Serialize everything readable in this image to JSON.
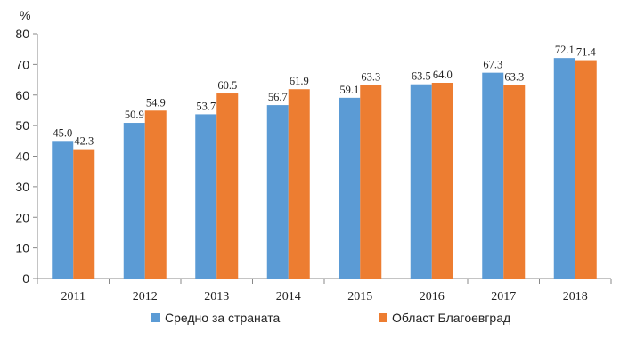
{
  "chart_data": {
    "type": "bar",
    "unit_label": "%",
    "categories": [
      "2011",
      "2012",
      "2013",
      "2014",
      "2015",
      "2016",
      "2017",
      "2018"
    ],
    "series": [
      {
        "name": "Средно за страната",
        "color": "#5b9bd5",
        "values": [
          45.0,
          50.9,
          53.7,
          56.7,
          59.1,
          63.5,
          67.3,
          72.1
        ]
      },
      {
        "name": "Област Благоевград",
        "color": "#ed7d31",
        "values": [
          42.3,
          54.9,
          60.5,
          61.9,
          63.3,
          64.0,
          63.3,
          71.4
        ]
      }
    ],
    "y_ticks": [
      0,
      10,
      20,
      30,
      40,
      50,
      60,
      70,
      80
    ],
    "ylim": [
      0,
      80
    ],
    "grid": false,
    "legend_position": "bottom",
    "data_labels": true
  }
}
